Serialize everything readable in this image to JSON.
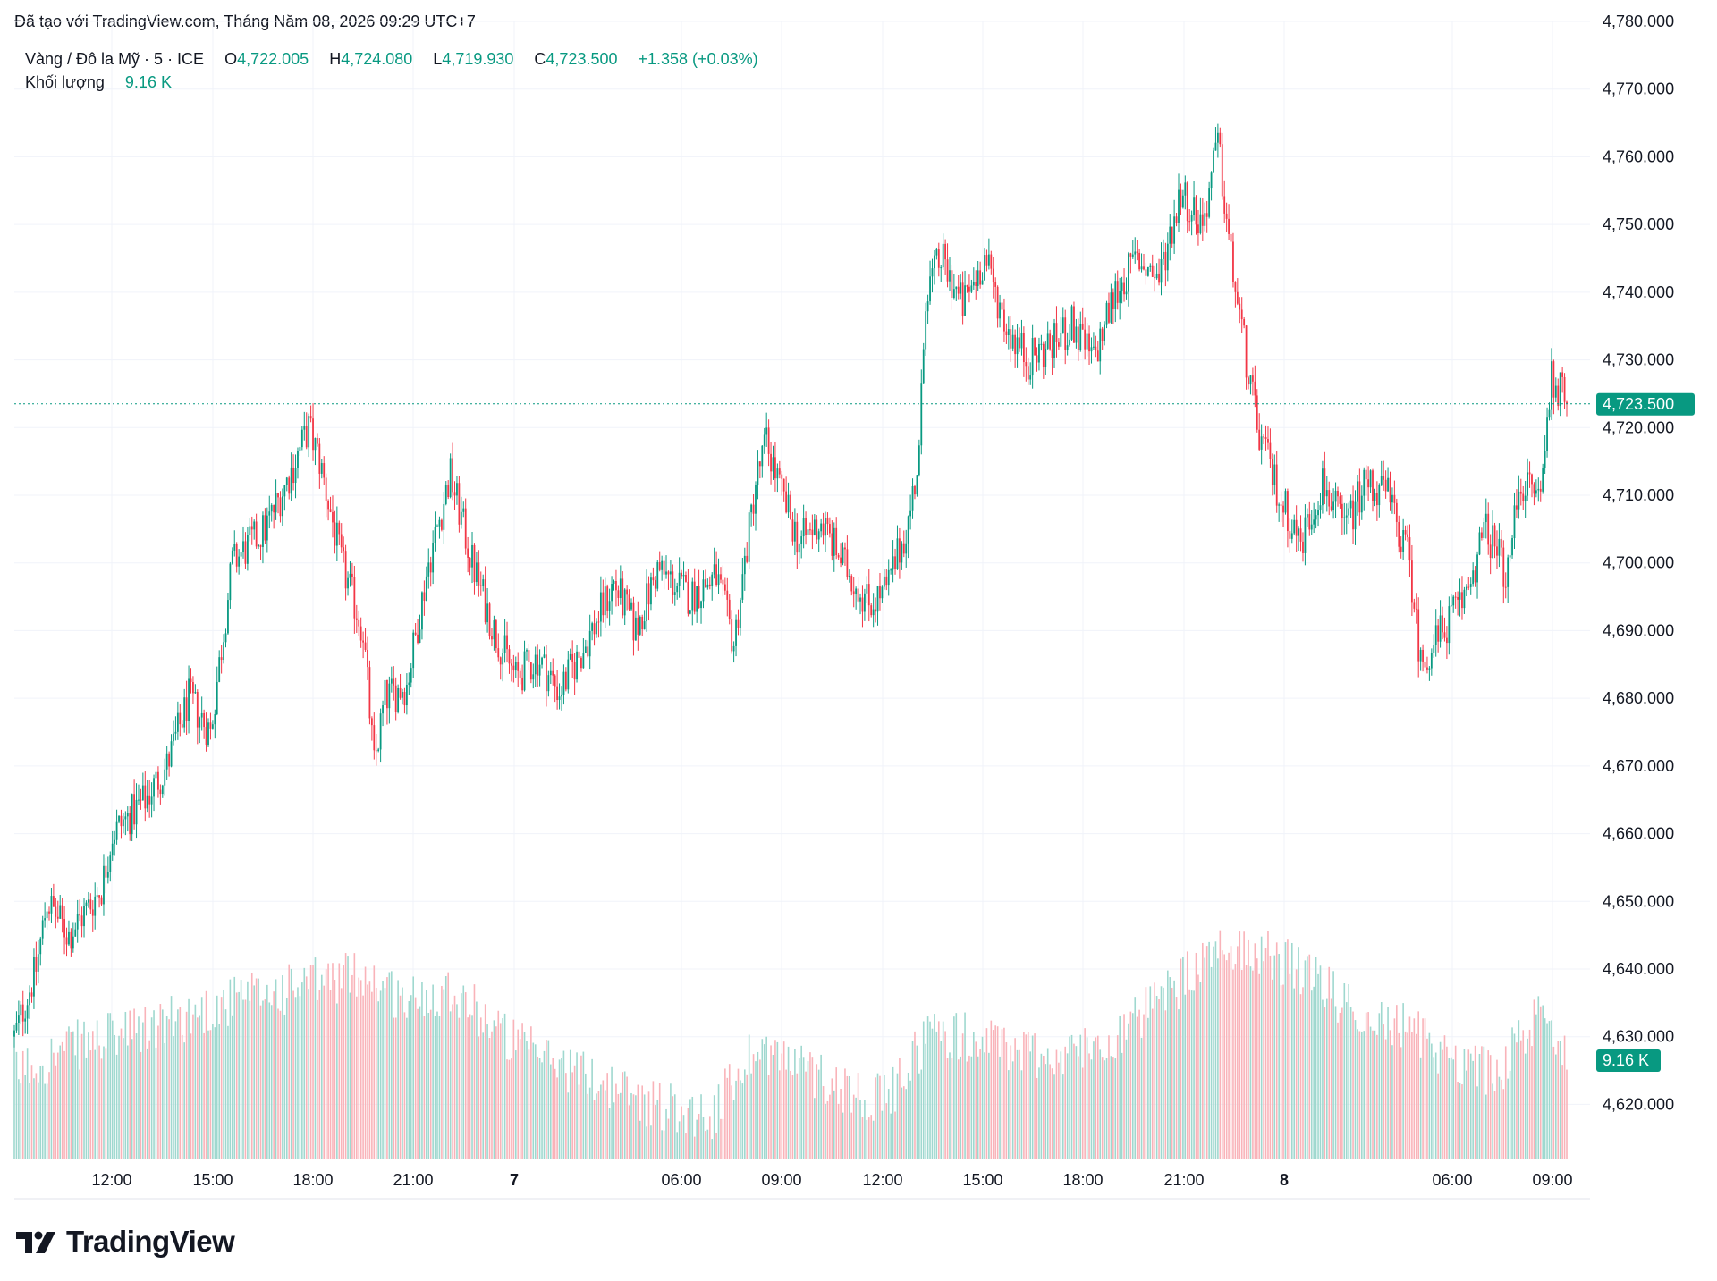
{
  "header": {
    "caption": "Đã tạo với TradingView.com, Tháng Năm 08, 2026 09:29 UTC+7"
  },
  "legend": {
    "symbol": "Vàng / Đô la Mỹ · 5 · ICE",
    "open_label": "O",
    "open": "4,722.005",
    "high_label": "H",
    "high": "4,724.080",
    "low_label": "L",
    "low": "4,719.930",
    "close_label": "C",
    "close": "4,723.500",
    "change": "+1.358 (+0.03%)",
    "volume_label": "Khối lượng",
    "volume": "9.16 K"
  },
  "price_tag": "4,723.500",
  "volume_tag": "9.16 K",
  "brand": {
    "name": "TradingView"
  },
  "colors": {
    "up": "#089981",
    "down": "#f23645",
    "up_volume": "#9fd8cf",
    "down_volume": "#f9b3b9",
    "grid": "#f0f3fa",
    "text": "#131722"
  },
  "chart_data": {
    "type": "candlestick",
    "title": "",
    "y_axis": {
      "ylim": [
        4612,
        4780
      ],
      "ticks": [
        "4,780.000",
        "4,770.000",
        "4,760.000",
        "4,750.000",
        "4,740.000",
        "4,730.000",
        "4,720.000",
        "4,710.000",
        "4,700.000",
        "4,690.000",
        "4,680.000",
        "4,670.000",
        "4,660.000",
        "4,650.000",
        "4,640.000",
        "4,630.000",
        "4,620.000"
      ]
    },
    "x_axis": {
      "ticks": [
        "12:00",
        "15:00",
        "18:00",
        "21:00",
        "7",
        "06:00",
        "09:00",
        "12:00",
        "15:00",
        "18:00",
        "21:00",
        "8",
        "06:00",
        "09:00"
      ],
      "bold_ticks": [
        "7",
        "8"
      ]
    },
    "last_price": 4723.5,
    "price_anchors": [
      [
        0,
        4630
      ],
      [
        10,
        4640
      ],
      [
        15,
        4650
      ],
      [
        25,
        4645
      ],
      [
        40,
        4652
      ],
      [
        45,
        4660
      ],
      [
        60,
        4665
      ],
      [
        70,
        4670
      ],
      [
        80,
        4680
      ],
      [
        90,
        4675
      ],
      [
        100,
        4700
      ],
      [
        115,
        4705
      ],
      [
        125,
        4712
      ],
      [
        135,
        4720
      ],
      [
        140,
        4715
      ],
      [
        150,
        4700
      ],
      [
        160,
        4690
      ],
      [
        165,
        4670
      ],
      [
        170,
        4680
      ],
      [
        180,
        4682
      ],
      [
        190,
        4700
      ],
      [
        200,
        4713
      ],
      [
        210,
        4700
      ],
      [
        220,
        4690
      ],
      [
        230,
        4683
      ],
      [
        240,
        4686
      ],
      [
        250,
        4681
      ],
      [
        262,
        4688
      ],
      [
        275,
        4697
      ],
      [
        285,
        4690
      ],
      [
        295,
        4699
      ],
      [
        310,
        4695
      ],
      [
        322,
        4698
      ],
      [
        330,
        4688
      ],
      [
        340,
        4712
      ],
      [
        345,
        4718
      ],
      [
        352,
        4710
      ],
      [
        360,
        4703
      ],
      [
        370,
        4706
      ],
      [
        380,
        4700
      ],
      [
        392,
        4694
      ],
      [
        400,
        4696
      ],
      [
        410,
        4706
      ],
      [
        415,
        4716
      ],
      [
        418,
        4740
      ],
      [
        425,
        4745
      ],
      [
        435,
        4738
      ],
      [
        445,
        4745
      ],
      [
        455,
        4735
      ],
      [
        465,
        4730
      ],
      [
        475,
        4732
      ],
      [
        485,
        4735
      ],
      [
        495,
        4730
      ],
      [
        505,
        4740
      ],
      [
        515,
        4745
      ],
      [
        525,
        4742
      ],
      [
        535,
        4755
      ],
      [
        545,
        4750
      ],
      [
        552,
        4762
      ],
      [
        558,
        4745
      ],
      [
        565,
        4730
      ],
      [
        570,
        4720
      ],
      [
        580,
        4710
      ],
      [
        590,
        4703
      ],
      [
        600,
        4712
      ],
      [
        610,
        4705
      ],
      [
        620,
        4712
      ],
      [
        630,
        4710
      ],
      [
        640,
        4700
      ],
      [
        645,
        4685
      ],
      [
        655,
        4690
      ],
      [
        665,
        4695
      ],
      [
        675,
        4705
      ],
      [
        685,
        4698
      ],
      [
        690,
        4712
      ],
      [
        700,
        4710
      ],
      [
        705,
        4728
      ],
      [
        712,
        4723.5
      ]
    ],
    "volume_levels": [
      [
        0,
        0.3
      ],
      [
        30,
        0.4
      ],
      [
        60,
        0.45
      ],
      [
        100,
        0.55
      ],
      [
        130,
        0.6
      ],
      [
        160,
        0.65
      ],
      [
        180,
        0.55
      ],
      [
        200,
        0.6
      ],
      [
        230,
        0.4
      ],
      [
        260,
        0.3
      ],
      [
        290,
        0.2
      ],
      [
        320,
        0.15
      ],
      [
        340,
        0.4
      ],
      [
        380,
        0.25
      ],
      [
        400,
        0.2
      ],
      [
        420,
        0.45
      ],
      [
        450,
        0.4
      ],
      [
        480,
        0.35
      ],
      [
        510,
        0.45
      ],
      [
        540,
        0.65
      ],
      [
        560,
        0.75
      ],
      [
        580,
        0.7
      ],
      [
        600,
        0.6
      ],
      [
        620,
        0.5
      ],
      [
        640,
        0.45
      ],
      [
        660,
        0.35
      ],
      [
        680,
        0.3
      ],
      [
        700,
        0.5
      ],
      [
        712,
        0.4
      ]
    ]
  }
}
